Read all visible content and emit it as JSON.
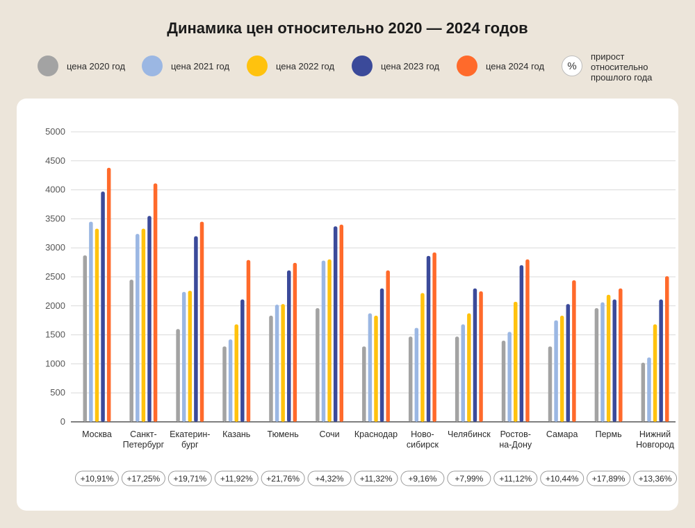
{
  "title": "Динамика цен относительно 2020 — 2024 годов",
  "legend": {
    "items": [
      {
        "label": "цена 2020 год",
        "color": "#a3a3a3"
      },
      {
        "label": "цена 2021 год",
        "color": "#9bb7e3"
      },
      {
        "label": "цена 2022 год",
        "color": "#ffc20e"
      },
      {
        "label": "цена 2023 год",
        "color": "#3b4a9a"
      },
      {
        "label": "цена 2024 год",
        "color": "#ff6a2b"
      }
    ],
    "pct_symbol": "%",
    "pct_label": "прирост относительно прошлого года"
  },
  "chart_data": {
    "type": "bar",
    "ylim": [
      0,
      5000
    ],
    "yticks": [
      0,
      500,
      1000,
      1500,
      2000,
      2500,
      3000,
      3500,
      4000,
      4500,
      5000
    ],
    "grid": true,
    "legend_position": "top",
    "categories": [
      [
        "Москва"
      ],
      [
        "Санкт-",
        "Петербург"
      ],
      [
        "Екатерин-",
        "бург"
      ],
      [
        "Казань"
      ],
      [
        "Тюмень"
      ],
      [
        "Сочи"
      ],
      [
        "Краснодар"
      ],
      [
        "Ново-",
        "сибирск"
      ],
      [
        "Челябинск"
      ],
      [
        "Ростов-",
        "на-Дону"
      ],
      [
        "Самара"
      ],
      [
        "Пермь"
      ],
      [
        "Нижний",
        "Новгород"
      ]
    ],
    "series": [
      {
        "name": "цена 2020 год",
        "color": "#a3a3a3",
        "values": [
          2870,
          2450,
          1600,
          1300,
          1830,
          1960,
          1300,
          1470,
          1470,
          1400,
          1300,
          1960,
          1020
        ]
      },
      {
        "name": "цена 2021 год",
        "color": "#9bb7e3",
        "values": [
          3450,
          3240,
          2240,
          1420,
          2020,
          2780,
          1870,
          1620,
          1680,
          1550,
          1750,
          2060,
          1110
        ]
      },
      {
        "name": "цена 2022 год",
        "color": "#ffc20e",
        "values": [
          3330,
          3330,
          2260,
          1680,
          2030,
          2800,
          1830,
          2220,
          1870,
          2070,
          1830,
          2190,
          1680
        ]
      },
      {
        "name": "цена 2023 год",
        "color": "#3b4a9a",
        "values": [
          3970,
          3550,
          3200,
          2110,
          2610,
          3370,
          2300,
          2860,
          2300,
          2700,
          2030,
          2110,
          2110
        ]
      },
      {
        "name": "цена 2024 год",
        "color": "#ff6a2b",
        "values": [
          4380,
          4110,
          3450,
          2790,
          2740,
          3400,
          2610,
          2920,
          2250,
          2800,
          2440,
          2300,
          2510
        ]
      }
    ],
    "growth": [
      "+10,91%",
      "+17,25%",
      "+19,71%",
      "+11,92%",
      "+21,76%",
      "+4,32%",
      "+11,32%",
      "+9,16%",
      "+7,99%",
      "+11,12%",
      "+10,44%",
      "+17,89%",
      "+13,36%"
    ]
  }
}
